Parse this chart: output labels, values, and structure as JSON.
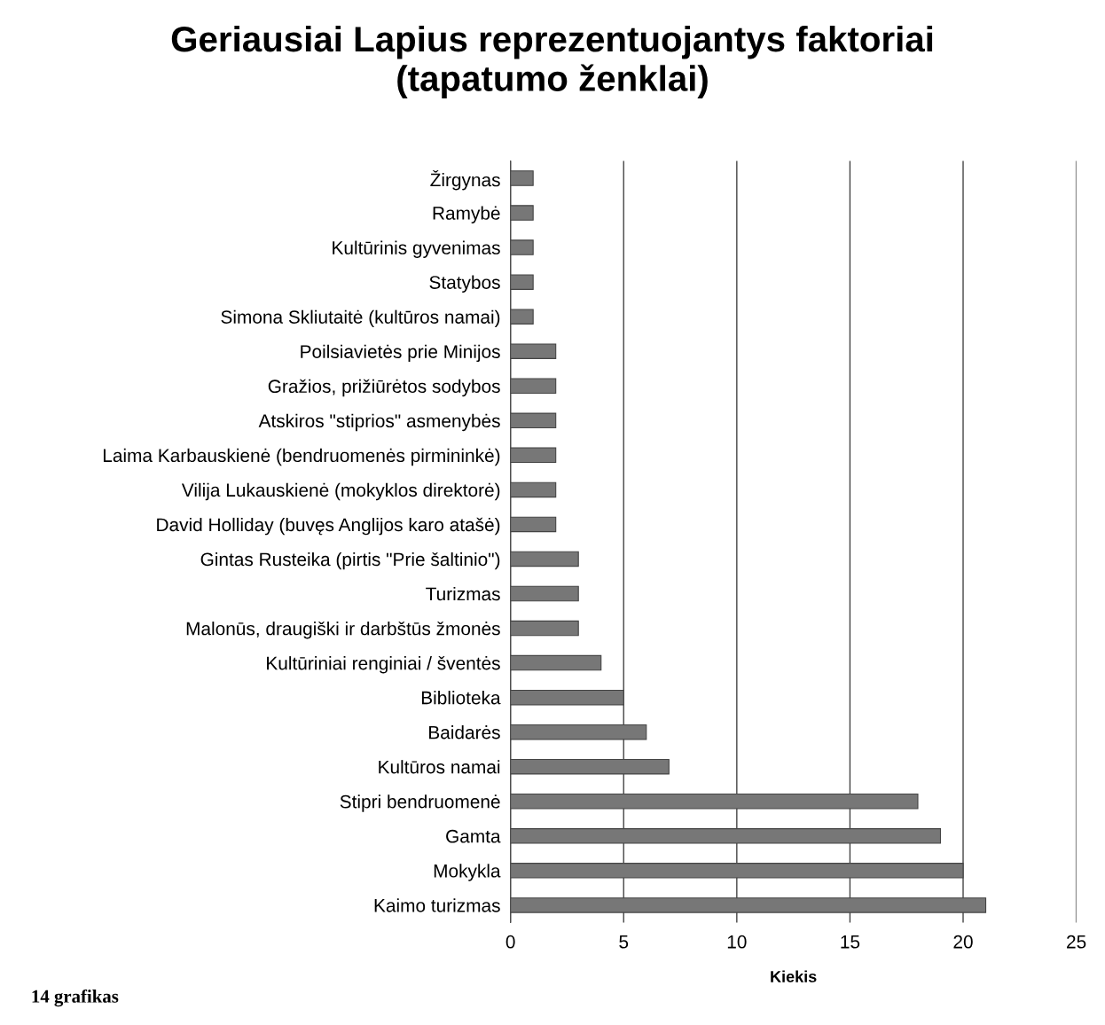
{
  "chart_data": {
    "type": "bar",
    "orientation": "horizontal",
    "title": "Geriausiai Lapius reprezentuojantys faktoriai\n(tapatumo ženklai)",
    "xlabel": "Kiekis",
    "categories": [
      "Žirgynas",
      "Ramybė",
      "Kultūrinis gyvenimas",
      "Statybos",
      "Simona Skliutaitė (kultūros namai)",
      "Poilsiavietės prie Minijos",
      "Gražios, prižiūrėtos sodybos",
      "Atskiros \"stiprios\" asmenybės",
      "Laima Karbauskienė (bendruomenės pirmininkė)",
      "Vilija Lukauskienė (mokyklos direktorė)",
      "David Holliday (buvęs Anglijos karo atašė)",
      "Gintas Rusteika (pirtis \"Prie šaltinio\")",
      "Turizmas",
      "Malonūs, draugiški ir darbštūs žmonės",
      "Kultūriniai renginiai / šventės",
      "Biblioteka",
      "Baidarės",
      "Kultūros namai",
      "Stipri bendruomenė",
      "Gamta",
      "Mokykla",
      "Kaimo turizmas"
    ],
    "values": [
      1,
      1,
      1,
      1,
      1,
      2,
      2,
      2,
      2,
      2,
      2,
      3,
      3,
      3,
      4,
      5,
      6,
      7,
      18,
      19,
      20,
      21
    ],
    "color": "#777777",
    "xlim": [
      0,
      25
    ],
    "xticks": [
      0,
      5,
      10,
      15,
      20,
      25
    ],
    "grid": "x",
    "annotations": [
      "14 grafikas"
    ]
  }
}
